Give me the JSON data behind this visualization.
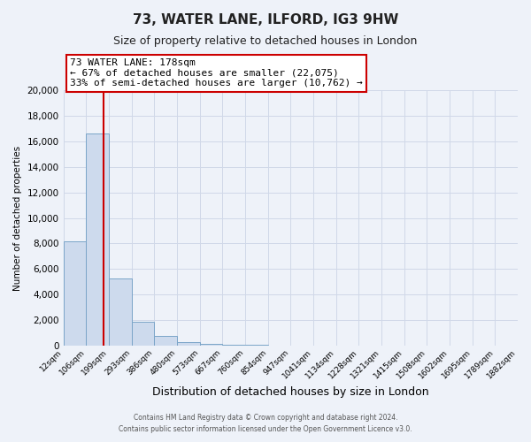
{
  "title": "73, WATER LANE, ILFORD, IG3 9HW",
  "subtitle": "Size of property relative to detached houses in London",
  "xlabel": "Distribution of detached houses by size in London",
  "ylabel": "Number of detached properties",
  "bin_labels": [
    "12sqm",
    "106sqm",
    "199sqm",
    "293sqm",
    "386sqm",
    "480sqm",
    "573sqm",
    "667sqm",
    "760sqm",
    "854sqm",
    "947sqm",
    "1041sqm",
    "1134sqm",
    "1228sqm",
    "1321sqm",
    "1415sqm",
    "1508sqm",
    "1602sqm",
    "1695sqm",
    "1789sqm",
    "1882sqm"
  ],
  "bar_values": [
    8200,
    16600,
    5300,
    1850,
    750,
    300,
    150,
    100,
    60,
    30,
    10,
    5,
    2,
    1,
    0,
    0,
    0,
    0,
    0,
    0
  ],
  "bar_color": "#cddaed",
  "bar_edge_color": "#7aa4c8",
  "vline_color": "#cc0000",
  "ylim": [
    0,
    20000
  ],
  "yticks": [
    0,
    2000,
    4000,
    6000,
    8000,
    10000,
    12000,
    14000,
    16000,
    18000,
    20000
  ],
  "annotation_title": "73 WATER LANE: 178sqm",
  "annotation_line1": "← 67% of detached houses are smaller (22,075)",
  "annotation_line2": "33% of semi-detached houses are larger (10,762) →",
  "annotation_box_color": "#ffffff",
  "annotation_box_edge": "#cc0000",
  "footer1": "Contains HM Land Registry data © Crown copyright and database right 2024.",
  "footer2": "Contains public sector information licensed under the Open Government Licence v3.0.",
  "bg_color": "#eef2f9",
  "grid_color": "#d0d8e8",
  "bin_edges": [
    12,
    106,
    199,
    293,
    386,
    480,
    573,
    667,
    760,
    854,
    947,
    1041,
    1134,
    1228,
    1321,
    1415,
    1508,
    1602,
    1695,
    1789,
    1882
  ],
  "vline_x": 178
}
